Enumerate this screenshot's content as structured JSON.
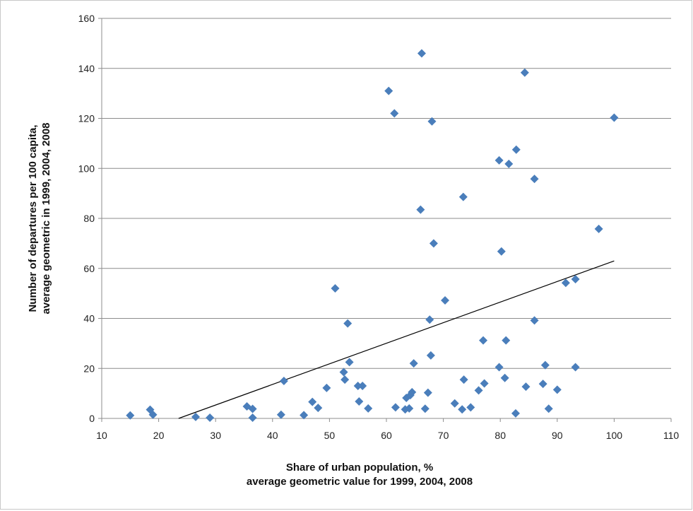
{
  "chart_data": {
    "type": "scatter",
    "xlabel_line1": "Share of urban population, %",
    "xlabel_line2": "average geometric value for 1999, 2004, 2008",
    "ylabel_line1": "Number of departures per 100 capita,",
    "ylabel_line2": "average geometric in 1999, 2004, 2008",
    "xlim": [
      10,
      110
    ],
    "ylim": [
      0,
      160
    ],
    "x_ticks": [
      10,
      20,
      30,
      40,
      50,
      60,
      70,
      80,
      90,
      100,
      110
    ],
    "y_ticks": [
      0,
      20,
      40,
      60,
      80,
      100,
      120,
      140,
      160
    ],
    "grid": "horizontal",
    "marker": "diamond",
    "marker_color": "#4a7ebb",
    "trendline": {
      "x": [
        23.5,
        100
      ],
      "y": [
        0,
        63
      ]
    },
    "points": [
      {
        "x": 15,
        "y": 1.2
      },
      {
        "x": 18.5,
        "y": 3.5
      },
      {
        "x": 19,
        "y": 1.5
      },
      {
        "x": 26.5,
        "y": 0.6
      },
      {
        "x": 29,
        "y": 0.3
      },
      {
        "x": 35.5,
        "y": 4.8
      },
      {
        "x": 36.5,
        "y": 3.8
      },
      {
        "x": 36.5,
        "y": 0.3
      },
      {
        "x": 41.5,
        "y": 1.5
      },
      {
        "x": 42,
        "y": 15
      },
      {
        "x": 45.5,
        "y": 1.3
      },
      {
        "x": 47,
        "y": 6.6
      },
      {
        "x": 48,
        "y": 4.2
      },
      {
        "x": 49.5,
        "y": 12.2
      },
      {
        "x": 51,
        "y": 52
      },
      {
        "x": 52.5,
        "y": 18.5
      },
      {
        "x": 52.7,
        "y": 15.5
      },
      {
        "x": 53.2,
        "y": 38
      },
      {
        "x": 53.5,
        "y": 22.5
      },
      {
        "x": 55,
        "y": 13
      },
      {
        "x": 55.2,
        "y": 6.8
      },
      {
        "x": 55.8,
        "y": 13
      },
      {
        "x": 56.8,
        "y": 4
      },
      {
        "x": 60.4,
        "y": 131
      },
      {
        "x": 61.4,
        "y": 122
      },
      {
        "x": 61.6,
        "y": 4.4
      },
      {
        "x": 63.3,
        "y": 3.6
      },
      {
        "x": 63.5,
        "y": 8.2
      },
      {
        "x": 64,
        "y": 4
      },
      {
        "x": 64.2,
        "y": 9.3
      },
      {
        "x": 64.5,
        "y": 10.5
      },
      {
        "x": 64.8,
        "y": 22
      },
      {
        "x": 66,
        "y": 83.5
      },
      {
        "x": 66.2,
        "y": 146
      },
      {
        "x": 66.8,
        "y": 3.9
      },
      {
        "x": 67.3,
        "y": 10.3
      },
      {
        "x": 67.6,
        "y": 39.5
      },
      {
        "x": 67.8,
        "y": 25.2
      },
      {
        "x": 68,
        "y": 118.8
      },
      {
        "x": 68.3,
        "y": 70
      },
      {
        "x": 70.3,
        "y": 47.2
      },
      {
        "x": 72,
        "y": 6
      },
      {
        "x": 73.3,
        "y": 3.6
      },
      {
        "x": 73.5,
        "y": 88.6
      },
      {
        "x": 73.6,
        "y": 15.5
      },
      {
        "x": 74.8,
        "y": 4.4
      },
      {
        "x": 76.2,
        "y": 11.2
      },
      {
        "x": 77,
        "y": 31.2
      },
      {
        "x": 77.2,
        "y": 14
      },
      {
        "x": 79.8,
        "y": 103.2
      },
      {
        "x": 79.8,
        "y": 20.5
      },
      {
        "x": 80.2,
        "y": 66.8
      },
      {
        "x": 80.8,
        "y": 16.2
      },
      {
        "x": 81,
        "y": 31.2
      },
      {
        "x": 81.5,
        "y": 101.8
      },
      {
        "x": 82.7,
        "y": 2
      },
      {
        "x": 82.8,
        "y": 107.5
      },
      {
        "x": 84.3,
        "y": 138.3
      },
      {
        "x": 84.5,
        "y": 12.7
      },
      {
        "x": 86,
        "y": 95.8
      },
      {
        "x": 86,
        "y": 39.2
      },
      {
        "x": 87.5,
        "y": 13.8
      },
      {
        "x": 87.9,
        "y": 21.3
      },
      {
        "x": 88.5,
        "y": 3.9
      },
      {
        "x": 90,
        "y": 11.5
      },
      {
        "x": 91.5,
        "y": 54.2
      },
      {
        "x": 93.2,
        "y": 55.7
      },
      {
        "x": 93.2,
        "y": 20.5
      },
      {
        "x": 97.3,
        "y": 75.8
      },
      {
        "x": 100,
        "y": 120.3
      }
    ]
  }
}
